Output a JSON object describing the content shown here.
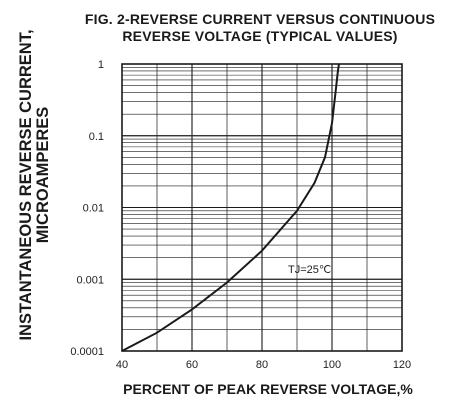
{
  "chart_data": {
    "type": "line",
    "title_line1": "FIG. 2-REVERSE CURRENT VERSUS CONTINUOUS",
    "title_line2": "REVERSE VOLTAGE (TYPICAL VALUES)",
    "xlabel": "PERCENT OF PEAK REVERSE VOLTAGE,%",
    "ylabel_line1": "INSTANTANEOUS REVERSE CURRENT,",
    "ylabel_line2": "MICROAMPERES",
    "xlim": [
      40,
      120
    ],
    "ylim": [
      0.0001,
      1
    ],
    "yscale": "log",
    "x_ticks": [
      "40",
      "60",
      "80",
      "100",
      "120"
    ],
    "y_ticks": [
      "0.0001",
      "0.001",
      "0.01",
      "0.1",
      "1"
    ],
    "grid": true,
    "annotation": "TJ=25℃",
    "series": [
      {
        "x": [
          40,
          50,
          60,
          70,
          80,
          90,
          95,
          98,
          100,
          101,
          101.7,
          102
        ],
        "y": [
          0.0001,
          0.00018,
          0.00038,
          0.0009,
          0.0025,
          0.009,
          0.022,
          0.05,
          0.15,
          0.4,
          0.8,
          1
        ]
      }
    ]
  }
}
